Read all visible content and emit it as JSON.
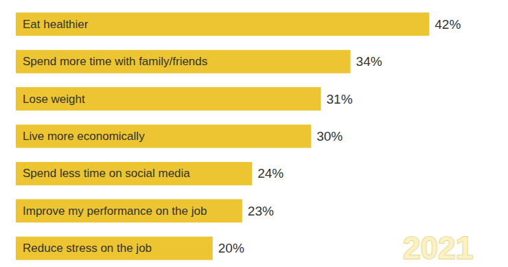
{
  "chart_data": {
    "type": "bar",
    "orientation": "horizontal",
    "categories": [
      "Eat healthier",
      "Spend more time with family/friends",
      "Lose weight",
      "Live more economically",
      "Spend less time on social media",
      "Improve my performance on the job",
      "Reduce stress on the job"
    ],
    "values": [
      42,
      34,
      31,
      30,
      24,
      23,
      20
    ],
    "value_labels": [
      "42%",
      "34%",
      "31%",
      "30%",
      "24%",
      "23%",
      "20%"
    ],
    "color": "#edc431",
    "xlim": [
      0,
      50
    ],
    "grid": false,
    "data_labels": true,
    "tick_labels": "y",
    "annotation": "2021"
  }
}
